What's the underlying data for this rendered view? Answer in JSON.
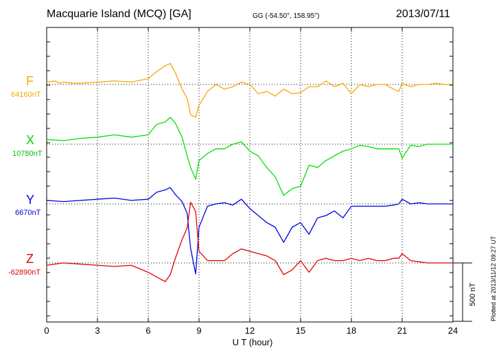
{
  "header": {
    "station": "Macquarie Island (MCQ)  [GA]",
    "coords": "GG (-54.50°, 158.95°)",
    "date": "2013/07/11"
  },
  "plotted_note": "Plotted at 2013/11/12 09:27  UT",
  "scale_label": "500 nT",
  "chart_data": {
    "type": "line",
    "xlabel": "U T (hour)",
    "xlim": [
      0,
      24
    ],
    "xticks": [
      0,
      3,
      6,
      9,
      12,
      15,
      18,
      21,
      24
    ],
    "ylabel": "",
    "scale_bar_nT": 500,
    "grid": true,
    "series": [
      {
        "name": "F",
        "baseline_label": "64160nT",
        "color": "#f5a800",
        "offset_nT": 64160,
        "x": [
          0,
          0.5,
          0.8,
          1,
          1.5,
          2,
          3,
          4,
          5,
          6,
          6.5,
          7,
          7.3,
          7.6,
          8,
          8.3,
          8.5,
          8.8,
          9,
          9.5,
          10,
          10.5,
          11,
          11.5,
          12,
          12.5,
          13,
          13.5,
          14,
          14.5,
          15,
          15.5,
          16,
          16.5,
          17,
          17.5,
          18,
          18.5,
          19,
          19.5,
          20,
          20.5,
          20.8,
          21,
          21.5,
          22,
          22.5,
          23,
          23.5,
          24
        ],
        "values": [
          20,
          30,
          10,
          20,
          10,
          10,
          20,
          30,
          20,
          50,
          110,
          160,
          180,
          100,
          -40,
          -120,
          -260,
          -280,
          -180,
          -60,
          0,
          -40,
          -20,
          20,
          0,
          -80,
          -60,
          -100,
          -40,
          -80,
          -70,
          -20,
          -20,
          30,
          -20,
          10,
          -80,
          0,
          -20,
          0,
          0,
          -40,
          -60,
          10,
          -20,
          0,
          0,
          10,
          0,
          0
        ]
      },
      {
        "name": "X",
        "baseline_label": "10780nT",
        "color": "#00e000",
        "offset_nT": 10780,
        "x": [
          0,
          1,
          2,
          3,
          4,
          5,
          6,
          6.5,
          7,
          7.3,
          7.6,
          8,
          8.3,
          8.5,
          8.8,
          9,
          9.5,
          10,
          10.5,
          11,
          11.5,
          12,
          12.5,
          13,
          13.5,
          14,
          14.5,
          15,
          15.5,
          16,
          16.5,
          17,
          17.5,
          18,
          18.5,
          19,
          19.5,
          20,
          20.5,
          20.8,
          21,
          21.5,
          22,
          22.5,
          23,
          23.5,
          24
        ],
        "values": [
          40,
          30,
          50,
          60,
          80,
          60,
          80,
          170,
          190,
          230,
          180,
          60,
          -100,
          -200,
          -300,
          -140,
          -80,
          -40,
          -40,
          0,
          20,
          -60,
          -100,
          -200,
          -280,
          -440,
          -380,
          -360,
          -180,
          -200,
          -140,
          -100,
          -60,
          -40,
          -10,
          -20,
          -40,
          -40,
          -40,
          -40,
          -120,
          -10,
          -20,
          0,
          0,
          0,
          0
        ]
      },
      {
        "name": "Y",
        "baseline_label": "6670nT",
        "color": "#0000e0",
        "offset_nT": 6670,
        "x": [
          0,
          1,
          2,
          3,
          4,
          5,
          6,
          6.5,
          7,
          7.3,
          7.6,
          8,
          8.3,
          8.5,
          8.8,
          9,
          9.5,
          10,
          10.5,
          11,
          11.5,
          12,
          12.5,
          13,
          13.5,
          14,
          14.5,
          15,
          15.5,
          16,
          16.5,
          17,
          17.5,
          18,
          18.5,
          19,
          19.5,
          20,
          20.5,
          20.8,
          21,
          21.5,
          22,
          22.5,
          23,
          23.5,
          24
        ],
        "values": [
          30,
          20,
          30,
          40,
          50,
          30,
          40,
          100,
          120,
          140,
          80,
          20,
          -80,
          -380,
          -600,
          -200,
          -20,
          0,
          10,
          -10,
          40,
          -40,
          -100,
          -160,
          -200,
          -330,
          -200,
          -160,
          -260,
          -120,
          -100,
          -60,
          -120,
          -20,
          -20,
          -20,
          -20,
          -20,
          -10,
          0,
          40,
          0,
          10,
          0,
          0,
          0,
          0
        ]
      },
      {
        "name": "Z",
        "baseline_label": "-62890nT",
        "color": "#e00000",
        "offset_nT": -62890,
        "x": [
          0,
          1,
          2,
          3,
          4,
          5,
          6,
          6.5,
          7,
          7.3,
          7.6,
          8,
          8.3,
          8.5,
          8.8,
          9,
          9.5,
          10,
          10.5,
          11,
          11.5,
          12,
          12.5,
          13,
          13.5,
          14,
          14.5,
          15,
          15.5,
          16,
          16.5,
          17,
          17.5,
          18,
          18.5,
          19,
          19.5,
          20,
          20.5,
          20.8,
          21,
          21.5,
          22,
          22.5,
          23,
          23.5,
          24
        ],
        "values": [
          -20,
          0,
          -10,
          -20,
          -30,
          -20,
          -80,
          -120,
          -160,
          -100,
          40,
          200,
          300,
          520,
          440,
          100,
          20,
          20,
          20,
          80,
          120,
          100,
          80,
          60,
          20,
          -100,
          -60,
          20,
          -80,
          20,
          40,
          20,
          20,
          40,
          20,
          40,
          20,
          20,
          40,
          40,
          80,
          20,
          10,
          0,
          0,
          0,
          0
        ]
      }
    ]
  }
}
